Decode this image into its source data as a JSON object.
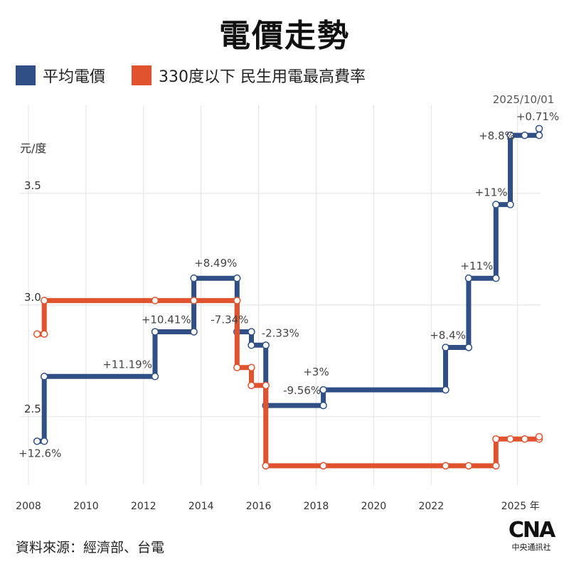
{
  "title": "電價走勢",
  "legend": {
    "avg_label": "平均電價",
    "residential_label": "330度以下 民生用電最高費率"
  },
  "colors": {
    "avg": "#2f4f86",
    "residential": "#e0532e",
    "grid": "#e2e2e2"
  },
  "source": "資料來源：經濟部、台電",
  "logo": {
    "mark": "CNA",
    "name": "中央通訊社"
  },
  "chart_data": {
    "type": "line",
    "step": true,
    "title": "電價走勢",
    "ylabel": "元/度",
    "xlabel": "",
    "xlim": [
      2008,
      2025.8
    ],
    "ylim": [
      2.2,
      3.92
    ],
    "y_ticks": [
      {
        "value": 2.5,
        "label": "2.5"
      },
      {
        "value": 3.0,
        "label": "3.0"
      },
      {
        "value": 3.5,
        "label": "3.5"
      }
    ],
    "x_ticks": [
      {
        "value": 2008,
        "label": "2008"
      },
      {
        "value": 2010,
        "label": "2010"
      },
      {
        "value": 2012,
        "label": "2012"
      },
      {
        "value": 2014,
        "label": "2014"
      },
      {
        "value": 2016,
        "label": "2016"
      },
      {
        "value": 2018,
        "label": "2018"
      },
      {
        "value": 2020,
        "label": "2020"
      },
      {
        "value": 2022,
        "label": "2022"
      },
      {
        "value": 2025,
        "label": "2025 年"
      }
    ],
    "series": [
      {
        "name": "平均電價",
        "color_key": "avg",
        "points": [
          {
            "x": 2008.3,
            "y": 2.39
          },
          {
            "x": 2008.55,
            "y": 2.39,
            "label": "+12.6%",
            "label_pos": "below"
          },
          {
            "x": 2008.55,
            "y": 2.68
          },
          {
            "x": 2012.4,
            "y": 2.68,
            "label": "+11.19%",
            "label_pos": "upper-left"
          },
          {
            "x": 2012.4,
            "y": 2.88
          },
          {
            "x": 2013.75,
            "y": 2.88,
            "label": "+10.41%",
            "label_pos": "upper-left"
          },
          {
            "x": 2013.75,
            "y": 3.12
          },
          {
            "x": 2015.25,
            "y": 3.12,
            "label": "+8.49%",
            "label_pos": "above-left"
          },
          {
            "x": 2015.25,
            "y": 2.88
          },
          {
            "x": 2015.75,
            "y": 2.88,
            "label": "-7.34%",
            "label_pos": "upper-left"
          },
          {
            "x": 2015.75,
            "y": 2.82
          },
          {
            "x": 2016.25,
            "y": 2.82,
            "label": "-2.33%",
            "label_pos": "upper-right"
          },
          {
            "x": 2016.25,
            "y": 2.55
          },
          {
            "x": 2018.25,
            "y": 2.55,
            "label": "-9.56%",
            "label_pos": "above-left"
          },
          {
            "x": 2018.25,
            "y": 2.62
          },
          {
            "x": 2022.5,
            "y": 2.62,
            "label": "+3%",
            "label_pos": "above-left-far"
          },
          {
            "x": 2022.5,
            "y": 2.81
          },
          {
            "x": 2023.3,
            "y": 2.81,
            "label": "+8.4%",
            "label_pos": "upper-left"
          },
          {
            "x": 2023.3,
            "y": 3.12
          },
          {
            "x": 2024.25,
            "y": 3.12,
            "label": "+11%",
            "label_pos": "upper-left"
          },
          {
            "x": 2024.25,
            "y": 3.45
          },
          {
            "x": 2024.75,
            "y": 3.45,
            "label": "+11%",
            "label_pos": "upper-left"
          },
          {
            "x": 2024.75,
            "y": 3.76
          },
          {
            "x": 2025.25,
            "y": 3.76,
            "label": "+8.8%",
            "label_pos": "left"
          },
          {
            "x": 2025.75,
            "y": 3.76
          },
          {
            "x": 2025.75,
            "y": 3.79,
            "label": "+0.71%",
            "label_pos": "above"
          }
        ]
      },
      {
        "name": "330度以下 民生用電最高費率",
        "color_key": "residential",
        "points": [
          {
            "x": 2008.3,
            "y": 2.87
          },
          {
            "x": 2008.55,
            "y": 2.87
          },
          {
            "x": 2008.55,
            "y": 3.02
          },
          {
            "x": 2012.4,
            "y": 3.02
          },
          {
            "x": 2013.75,
            "y": 3.02
          },
          {
            "x": 2015.25,
            "y": 3.02
          },
          {
            "x": 2015.25,
            "y": 2.72
          },
          {
            "x": 2015.75,
            "y": 2.72
          },
          {
            "x": 2015.75,
            "y": 2.64
          },
          {
            "x": 2016.25,
            "y": 2.64
          },
          {
            "x": 2016.25,
            "y": 2.28
          },
          {
            "x": 2018.25,
            "y": 2.28
          },
          {
            "x": 2022.5,
            "y": 2.28
          },
          {
            "x": 2023.3,
            "y": 2.28
          },
          {
            "x": 2024.25,
            "y": 2.28
          },
          {
            "x": 2024.25,
            "y": 2.4
          },
          {
            "x": 2024.75,
            "y": 2.4
          },
          {
            "x": 2025.25,
            "y": 2.4
          },
          {
            "x": 2025.75,
            "y": 2.4
          },
          {
            "x": 2025.75,
            "y": 2.41
          }
        ]
      }
    ],
    "annotations": [
      {
        "x": 2025.75,
        "y": 3.79,
        "text": "2025/10/01",
        "pos": "above-far"
      }
    ]
  }
}
